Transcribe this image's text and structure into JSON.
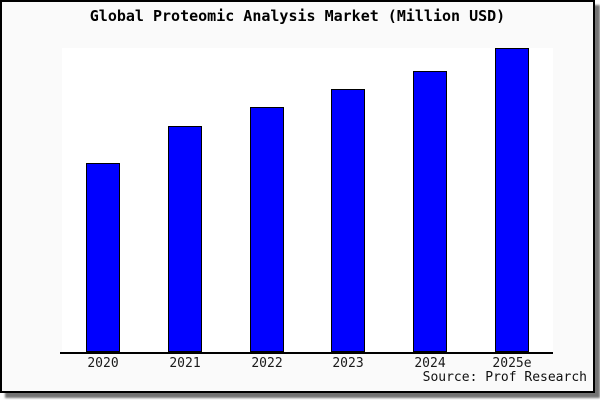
{
  "chart_data": {
    "type": "bar",
    "title": "Global Proteomic Analysis Market (Million USD)",
    "categories": [
      "2020",
      "2021",
      "2022",
      "2023",
      "2024",
      "2025e"
    ],
    "values": [
      62.2,
      74.3,
      80.6,
      86.5,
      92.4,
      100
    ],
    "values_note": "No y-axis ticks or gridlines shown; values are bar heights normalized to 2025e = 100",
    "xlabel": "",
    "ylabel": "",
    "ylim": [
      0,
      100
    ],
    "grid": false,
    "legend": false,
    "source_note": "Source: Prof Research",
    "colors": {
      "bar_fill": "#0000FF",
      "bar_border": "#000000",
      "figure_background": "#FAFAFA",
      "plot_background": "#FFFFFF",
      "axis_line": "#000000",
      "label_text": "#1A1A1A",
      "title_text": "#000000"
    }
  }
}
